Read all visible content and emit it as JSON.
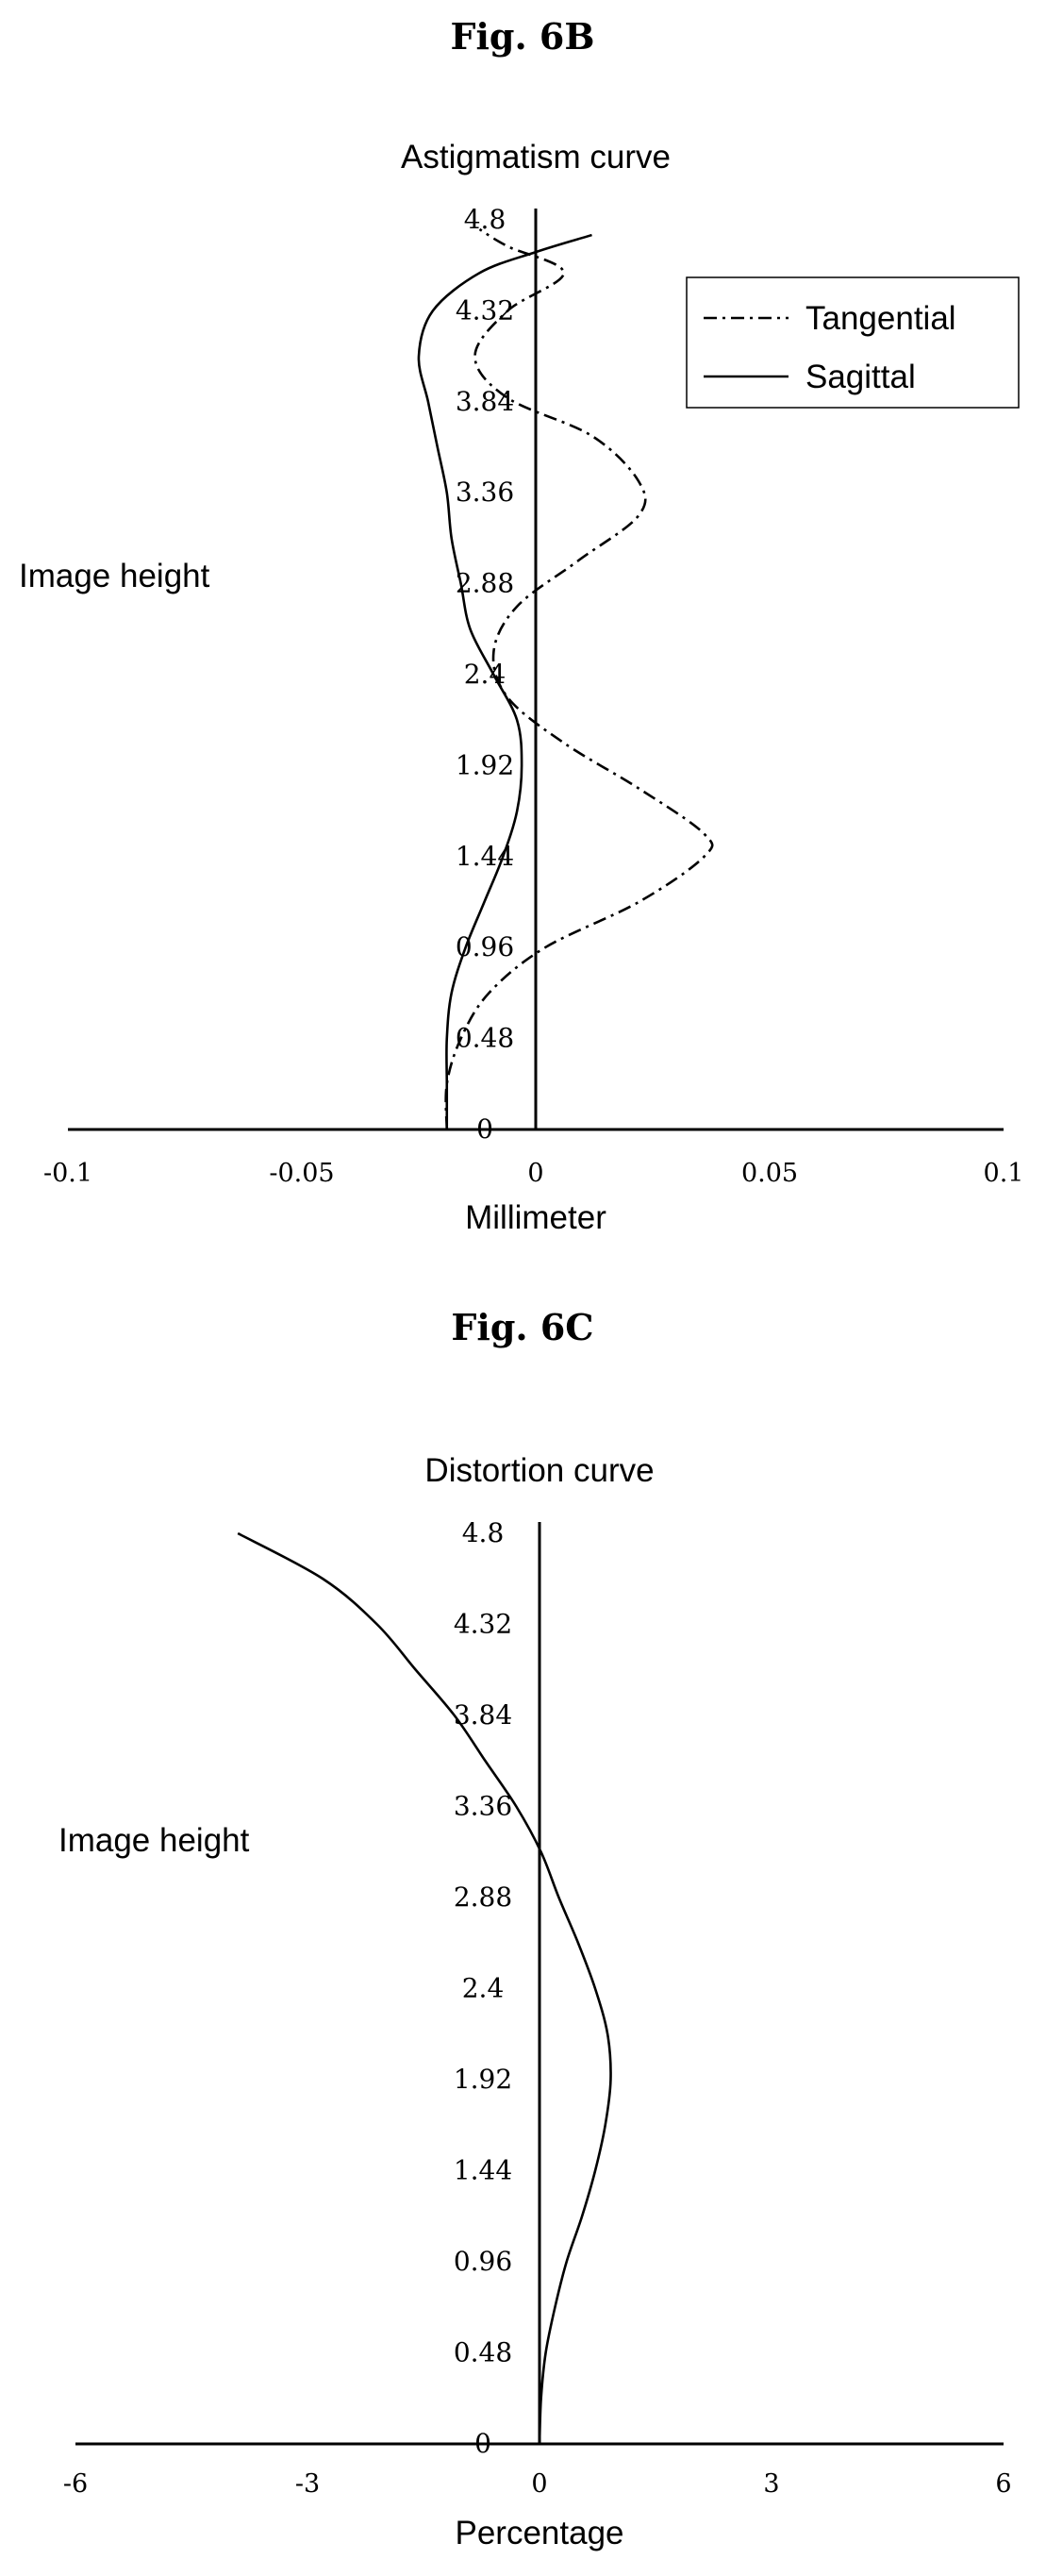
{
  "figures": [
    {
      "title": "Fig. 6B"
    },
    {
      "title": "Fig. 6C"
    }
  ],
  "colors": {
    "ink": "#000000",
    "background": "#ffffff"
  },
  "chart_data": [
    {
      "type": "line",
      "title": "Astigmatism curve",
      "xlabel": "Millimeter",
      "ylabel": "Image height",
      "xlim": [
        -0.1,
        0.1
      ],
      "ylim": [
        0,
        4.8
      ],
      "x_ticks": [
        "-0.1",
        "-0.05",
        "0",
        "0.05",
        "0.1"
      ],
      "y_ticks": [
        "0",
        "0.48",
        "0.96",
        "1.44",
        "1.92",
        "2.4",
        "2.88",
        "3.36",
        "3.84",
        "4.32",
        "4.8"
      ],
      "grid": false,
      "legend": "top-right",
      "series": [
        {
          "name": "Tangential",
          "style": "dash-dot",
          "points": [
            [
              -0.019,
              0
            ],
            [
              -0.019,
              0.24
            ],
            [
              -0.016,
              0.48
            ],
            [
              -0.01,
              0.72
            ],
            [
              0.002,
              0.96
            ],
            [
              0.022,
              1.2
            ],
            [
              0.036,
              1.44
            ],
            [
              0.036,
              1.56
            ],
            [
              0.022,
              1.8
            ],
            [
              0.006,
              2.04
            ],
            [
              -0.006,
              2.28
            ],
            [
              -0.009,
              2.52
            ],
            [
              -0.004,
              2.76
            ],
            [
              0.009,
              3.0
            ],
            [
              0.022,
              3.24
            ],
            [
              0.022,
              3.42
            ],
            [
              0.012,
              3.66
            ],
            [
              -0.006,
              3.86
            ],
            [
              -0.013,
              4.08
            ],
            [
              -0.006,
              4.32
            ],
            [
              0.006,
              4.52
            ],
            [
              -0.006,
              4.66
            ],
            [
              -0.012,
              4.75
            ]
          ]
        },
        {
          "name": "Sagittal",
          "style": "solid",
          "points": [
            [
              -0.019,
              0
            ],
            [
              -0.019,
              0.24
            ],
            [
              -0.019,
              0.48
            ],
            [
              -0.018,
              0.72
            ],
            [
              -0.015,
              0.96
            ],
            [
              -0.011,
              1.2
            ],
            [
              -0.007,
              1.44
            ],
            [
              -0.004,
              1.68
            ],
            [
              -0.003,
              1.92
            ],
            [
              -0.004,
              2.16
            ],
            [
              -0.009,
              2.4
            ],
            [
              -0.014,
              2.64
            ],
            [
              -0.016,
              2.88
            ],
            [
              -0.018,
              3.12
            ],
            [
              -0.019,
              3.36
            ],
            [
              -0.021,
              3.6
            ],
            [
              -0.023,
              3.84
            ],
            [
              -0.025,
              4.08
            ],
            [
              -0.022,
              4.32
            ],
            [
              -0.012,
              4.52
            ],
            [
              0.0,
              4.63
            ],
            [
              0.012,
              4.72
            ]
          ]
        }
      ]
    },
    {
      "type": "line",
      "title": "Distortion curve",
      "xlabel": "Percentage",
      "ylabel": "Image height",
      "xlim": [
        -6,
        6
      ],
      "ylim": [
        0,
        4.8
      ],
      "x_ticks": [
        "-6",
        "-3",
        "0",
        "3",
        "6"
      ],
      "y_ticks": [
        "0",
        "0.48",
        "0.96",
        "1.44",
        "1.92",
        "2.4",
        "2.88",
        "3.36",
        "3.84",
        "4.32",
        "4.8"
      ],
      "grid": false,
      "legend": "none",
      "series": [
        {
          "style": "solid",
          "points": [
            [
              0,
              0
            ],
            [
              0.02,
              0.24
            ],
            [
              0.08,
              0.48
            ],
            [
              0.2,
              0.72
            ],
            [
              0.35,
              0.96
            ],
            [
              0.55,
              1.2
            ],
            [
              0.72,
              1.44
            ],
            [
              0.85,
              1.68
            ],
            [
              0.92,
              1.92
            ],
            [
              0.88,
              2.16
            ],
            [
              0.72,
              2.4
            ],
            [
              0.5,
              2.64
            ],
            [
              0.25,
              2.88
            ],
            [
              0.02,
              3.12
            ],
            [
              -0.3,
              3.36
            ],
            [
              -0.7,
              3.6
            ],
            [
              -1.1,
              3.84
            ],
            [
              -1.6,
              4.08
            ],
            [
              -2.1,
              4.32
            ],
            [
              -2.8,
              4.56
            ],
            [
              -3.9,
              4.8
            ]
          ]
        }
      ]
    }
  ]
}
